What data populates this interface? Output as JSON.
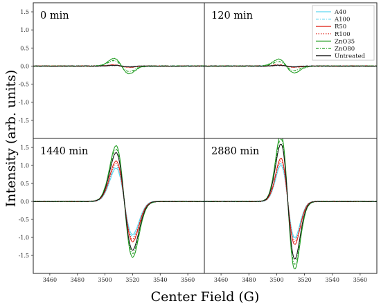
{
  "chart_data": {
    "type": "line",
    "xlabel": "Center Field (G)",
    "ylabel": "Intensity (arb. units)",
    "xlim": [
      3448,
      3572
    ],
    "ylim": [
      -2.0,
      1.75
    ],
    "xticks": [
      3460,
      3480,
      3500,
      3520,
      3540,
      3560
    ],
    "yticks": [
      -1.5,
      -1.0,
      -0.5,
      0.0,
      0.5,
      1.0,
      1.5
    ],
    "grid": false,
    "legend_position": "top-right, inside the 120 min panel",
    "legend": [
      {
        "label": "A40",
        "color": "#5ed7f0",
        "dash": "solid"
      },
      {
        "label": "A100",
        "color": "#5ed7f0",
        "dash": "dashdot"
      },
      {
        "label": "R50",
        "color": "#e0261c",
        "dash": "solid"
      },
      {
        "label": "R100",
        "color": "#e0261c",
        "dash": "dotted"
      },
      {
        "label": "ZnO35",
        "color": "#239e24",
        "dash": "solid"
      },
      {
        "label": "ZnO80",
        "color": "#239e24",
        "dash": "dashdot"
      },
      {
        "label": "Untreated",
        "color": "#1a1a1a",
        "dash": "solid"
      }
    ],
    "panels": [
      {
        "label": "0 min",
        "center": 3512,
        "width": 5.5,
        "amplitudes": {
          "A40": 0.02,
          "A100": 0.02,
          "R50": 0.03,
          "R100": 0.02,
          "ZnO35": 0.21,
          "ZnO80": 0.15,
          "Untreated": 0.02
        }
      },
      {
        "label": "120 min",
        "center": 3507,
        "width": 5.5,
        "amplitudes": {
          "A40": 0.02,
          "A100": 0.02,
          "R50": 0.03,
          "R100": 0.02,
          "ZnO35": 0.19,
          "ZnO80": 0.12,
          "Untreated": 0.02
        }
      },
      {
        "label": "1440 min",
        "center": 3514,
        "width": 6.0,
        "amplitudes": {
          "A40": 0.92,
          "A100": 0.98,
          "R50": 1.12,
          "R100": 1.05,
          "ZnO35": 1.55,
          "ZnO80": 1.45,
          "Untreated": 1.35
        }
      },
      {
        "label": "2880 min",
        "center": 3508,
        "width": 5.0,
        "amplitudes": {
          "A40": 1.0,
          "A100": 1.05,
          "R50": 1.2,
          "R100": 1.12,
          "ZnO35": 1.88,
          "ZnO80": 1.75,
          "Untreated": 1.6
        }
      }
    ]
  }
}
